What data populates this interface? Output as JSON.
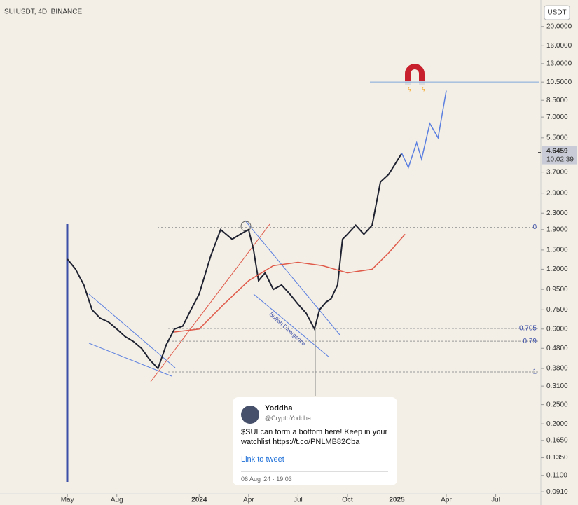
{
  "header": {
    "symbol": "SUIUSDT, 4D, BINANCE",
    "currency": "USDT"
  },
  "chart_data": {
    "type": "line",
    "log_scale": true,
    "xlim": [
      -4.09,
      28.74
    ],
    "xticks": [
      {
        "value": 0,
        "label": "May"
      },
      {
        "value": 3,
        "label": "Aug"
      },
      {
        "value": 8,
        "label": "2024"
      },
      {
        "value": 11,
        "label": "Apr"
      },
      {
        "value": 14,
        "label": "Jul"
      },
      {
        "value": 17,
        "label": "Oct"
      },
      {
        "value": 20,
        "label": "2025"
      },
      {
        "value": 23,
        "label": "Apr"
      },
      {
        "value": 26,
        "label": "Jul"
      }
    ],
    "ylim": [
      0.084,
      26.1
    ],
    "yticks": [
      {
        "value": 20,
        "label": "20.0000"
      },
      {
        "value": 16,
        "label": "16.0000"
      },
      {
        "value": 13,
        "label": "13.0000"
      },
      {
        "value": 10.5,
        "label": "10.5000"
      },
      {
        "value": 8.5,
        "label": "8.5000"
      },
      {
        "value": 7,
        "label": "7.0000"
      },
      {
        "value": 5.5,
        "label": "5.5000"
      },
      {
        "value": 3.7,
        "label": "3.7000"
      },
      {
        "value": 2.9,
        "label": "2.9000"
      },
      {
        "value": 2.3,
        "label": "2.3000"
      },
      {
        "value": 1.9,
        "label": "1.9000"
      },
      {
        "value": 1.5,
        "label": "1.5000"
      },
      {
        "value": 1.2,
        "label": "1.2000"
      },
      {
        "value": 0.95,
        "label": "0.9500"
      },
      {
        "value": 0.75,
        "label": "0.7500"
      },
      {
        "value": 0.6,
        "label": "0.6000"
      },
      {
        "value": 0.48,
        "label": "0.4800"
      },
      {
        "value": 0.38,
        "label": "0.3800"
      },
      {
        "value": 0.31,
        "label": "0.3100"
      },
      {
        "value": 0.25,
        "label": "0.2500"
      },
      {
        "value": 0.2,
        "label": "0.2000"
      },
      {
        "value": 0.165,
        "label": "0.1650"
      },
      {
        "value": 0.135,
        "label": "0.1350"
      },
      {
        "value": 0.11,
        "label": "0.1100"
      },
      {
        "value": 0.091,
        "label": "0.0910"
      }
    ],
    "series": [
      {
        "color": "#1f2230",
        "x": [
          0,
          0.5,
          1,
          1.5,
          2,
          2.5,
          3,
          3.5,
          4,
          4.5,
          5,
          5.5,
          6,
          6.5,
          7,
          7.5,
          8,
          8.7,
          9.3,
          10,
          10.5,
          11,
          11.3,
          11.6,
          12,
          12.5,
          13,
          13.5,
          14,
          14.5,
          15,
          15.3,
          15.7,
          16,
          16.4,
          16.7,
          17,
          17.5,
          18,
          18.5,
          19,
          19.5,
          20,
          20.3
        ],
        "values": [
          1.35,
          1.2,
          1.0,
          0.75,
          0.68,
          0.65,
          0.6,
          0.55,
          0.52,
          0.48,
          0.42,
          0.38,
          0.5,
          0.6,
          0.62,
          0.75,
          0.9,
          1.4,
          1.9,
          1.7,
          1.8,
          1.9,
          1.5,
          1.05,
          1.15,
          0.95,
          1.0,
          0.9,
          0.8,
          0.72,
          0.6,
          0.75,
          0.82,
          0.85,
          1.0,
          1.7,
          1.8,
          2.0,
          1.8,
          2.0,
          3.3,
          3.6,
          4.2,
          4.6
        ]
      },
      {
        "color": "#5b7fe0",
        "x": [
          20.3,
          20.7,
          21.2,
          21.5,
          22,
          22.5,
          23
        ],
        "values": [
          4.6,
          3.9,
          5.2,
          4.3,
          6.5,
          5.5,
          9.5
        ]
      },
      {
        "color": "#e05a4a",
        "x": [
          6.5,
          8,
          9.5,
          11,
          12.5,
          14,
          15.5,
          17,
          18.5,
          19.5,
          20.5
        ],
        "values": [
          0.58,
          0.6,
          0.8,
          1.05,
          1.25,
          1.3,
          1.25,
          1.15,
          1.2,
          1.45,
          1.8
        ]
      }
    ],
    "fib_levels": [
      {
        "value": 1.95,
        "label": "0"
      },
      {
        "value": 0.604,
        "label": "0.705"
      },
      {
        "value": 0.521,
        "label": "0.79"
      },
      {
        "value": 0.365,
        "label": "1"
      }
    ],
    "resistance": 10.5,
    "last_price": 4.6459,
    "countdown": "10:02:39",
    "annotation": "Bullish Divergence"
  },
  "tweet": {
    "name": "Yoddha",
    "handle": "@CryptoYoddha",
    "text": "$SUI can form a bottom here! Keep in your watchlist https://t.co/PNLMB82Cba",
    "link": "Link to tweet",
    "date": "06 Aug '24 · 19:03"
  }
}
